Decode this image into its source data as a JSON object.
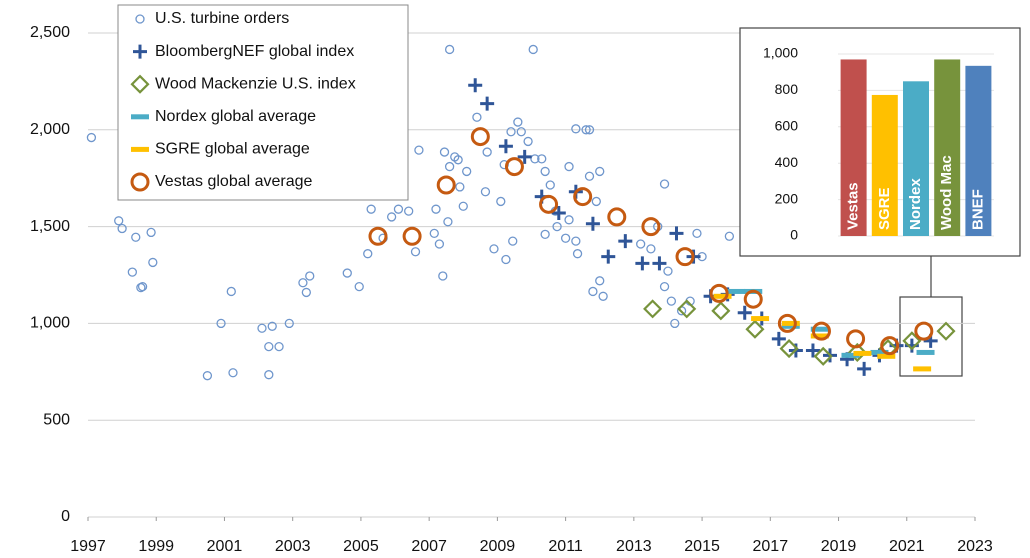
{
  "chart_data": [
    {
      "type": "scatter",
      "legend": "upper left",
      "grid": true,
      "xlim": [
        1997,
        2023
      ],
      "xticks": [
        1997,
        1999,
        2001,
        2003,
        2005,
        2007,
        2009,
        2011,
        2013,
        2015,
        2017,
        2019,
        2021,
        2023
      ],
      "ylim": [
        0,
        2500
      ],
      "yticks": [
        0,
        500,
        {
          "value": 1000,
          "label": "1,000"
        },
        {
          "value": 1500,
          "label": "1,500"
        },
        {
          "value": 2000,
          "label": "2,000"
        },
        {
          "value": 2500,
          "label": "2,500"
        }
      ],
      "series": [
        {
          "name": "U.S. turbine orders",
          "color": "#6f96cc",
          "marker": "circle",
          "x": [
            1997.1,
            1997.9,
            1998.0,
            1998.4,
            1998.3,
            1998.6,
            1998.55,
            1998.85,
            1998.9,
            2000.5,
            2000.9,
            2001.2,
            2001.25,
            2002.1,
            2002.4,
            2002.3,
            2002.3,
            2002.6,
            2002.9,
            2003.3,
            2003.5,
            2003.4,
            2004.6,
            2004.95,
            2005.2,
            2005.3,
            2005.9,
            2006.1,
            2006.4,
            2005.65,
            2006.7,
            2006.6,
            2007.6,
            2007.2,
            2007.3,
            2007.45,
            2007.6,
            2007.75,
            2007.9,
            2008.0,
            2008.1,
            2007.4,
            2007.15,
            2007.55,
            2007.85,
            2008.4,
            2008.65,
            2008.7,
            2008.9,
            2009.1,
            2009.2,
            2009.4,
            2009.25,
            2009.45,
            2009.6,
            2009.7,
            2009.9,
            2010.05,
            2010.1,
            2010.3,
            2010.4,
            2010.55,
            2010.7,
            2010.4,
            2010.75,
            2011.0,
            2011.1,
            2011.3,
            2011.6,
            2011.7,
            2011.1,
            2011.3,
            2011.35,
            2011.7,
            2011.9,
            2011.8,
            2012.0,
            2012.1,
            2012.0,
            2013.2,
            2013.5,
            2013.7,
            2013.9,
            2014.0,
            2013.9,
            2014.1,
            2014.2,
            2014.4,
            2014.65,
            2014.85,
            2015.0,
            2015.8
          ],
          "values": [
            1960,
            1530,
            1490,
            1445,
            1265,
            1190,
            1185,
            1470,
            1315,
            730,
            1000,
            1165,
            745,
            975,
            985,
            735,
            880,
            880,
            1000,
            1210,
            1245,
            1160,
            1260,
            1190,
            1360,
            1590,
            1550,
            1590,
            1580,
            1440,
            1895,
            1370,
            2415,
            1590,
            1410,
            1885,
            1810,
            1860,
            1705,
            1605,
            1785,
            1245,
            1465,
            1525,
            1845,
            2065,
            1680,
            1885,
            1385,
            1630,
            1820,
            1990,
            1330,
            1425,
            2040,
            1990,
            1940,
            2415,
            1850,
            1850,
            1785,
            1715,
            1580,
            1460,
            1500,
            1440,
            1535,
            2005,
            2000,
            2000,
            1810,
            1425,
            1360,
            1760,
            1630,
            1165,
            1220,
            1140,
            1785,
            1410,
            1385,
            1500,
            1720,
            1270,
            1190,
            1115,
            1000,
            1065,
            1115,
            1465,
            1345,
            1450
          ]
        },
        {
          "name": "BloombergNEF global index",
          "color": "#2f5597",
          "marker": "plus",
          "x": [
            2008.35,
            2008.7,
            2009.25,
            2009.8,
            2010.3,
            2010.8,
            2011.3,
            2011.8,
            2012.25,
            2012.75,
            2013.25,
            2013.75,
            2014.25,
            2014.75,
            2015.25,
            2015.75,
            2016.25,
            2016.75,
            2017.25,
            2017.75,
            2018.25,
            2018.75,
            2019.25,
            2019.75,
            2020.2,
            2020.7,
            2021.15,
            2021.7
          ],
          "values": [
            2230,
            2135,
            1915,
            1860,
            1655,
            1570,
            1680,
            1515,
            1345,
            1425,
            1310,
            1310,
            1465,
            1345,
            1140,
            1150,
            1055,
            1025,
            920,
            860,
            860,
            835,
            815,
            765,
            835,
            885,
            885,
            910
          ]
        },
        {
          "name": "Wood Mackenzie U.S. index",
          "color": "#77933c",
          "marker": "diamond",
          "x": [
            2013.55,
            2014.55,
            2015.55,
            2016.55,
            2017.55,
            2018.55,
            2019.55,
            2020.45,
            2021.15,
            2022.15
          ],
          "values": [
            1075,
            1075,
            1065,
            970,
            870,
            830,
            850,
            870,
            910,
            960
          ]
        },
        {
          "name": "Nordex global average",
          "color": "#4bacc6",
          "marker": "dash",
          "x": [
            2016.0,
            2016.5,
            2017.6,
            2018.45,
            2019.35,
            2020.2,
            2021.55
          ],
          "values": [
            1165,
            1165,
            985,
            970,
            835,
            850,
            850
          ]
        },
        {
          "name": "SGRE global average",
          "color": "#ffc000",
          "marker": "dash",
          "x": [
            2015.6,
            2016.7,
            2017.6,
            2018.45,
            2019.7,
            2020.4,
            2021.45
          ],
          "values": [
            1140,
            1025,
            1000,
            935,
            845,
            830,
            765
          ]
        },
        {
          "name": "Vestas global average",
          "color": "#c55a11",
          "marker": "ring",
          "x": [
            2005.5,
            2006.5,
            2007.5,
            2008.5,
            2009.5,
            2010.5,
            2011.5,
            2012.5,
            2013.5,
            2014.5,
            2015.5,
            2016.5,
            2017.5,
            2018.5,
            2019.5,
            2020.5,
            2021.5
          ],
          "values": [
            1450,
            1450,
            1715,
            1965,
            1810,
            1615,
            1655,
            1550,
            1500,
            1345,
            1155,
            1125,
            1000,
            960,
            920,
            885,
            960
          ]
        }
      ]
    },
    {
      "type": "bar",
      "grid": true,
      "categories": [
        "Vestas",
        "SGRE",
        "Nordex",
        "Wood Mac",
        "BNEF"
      ],
      "values": [
        970,
        775,
        850,
        970,
        935
      ],
      "colors": [
        "#c0504d",
        "#ffc000",
        "#4bacc6",
        "#77933c",
        "#4f81bd"
      ],
      "ylim": [
        0,
        1000
      ],
      "yticks": [
        0,
        200,
        400,
        600,
        800,
        {
          "value": 1000,
          "label": "1,000"
        }
      ]
    }
  ]
}
